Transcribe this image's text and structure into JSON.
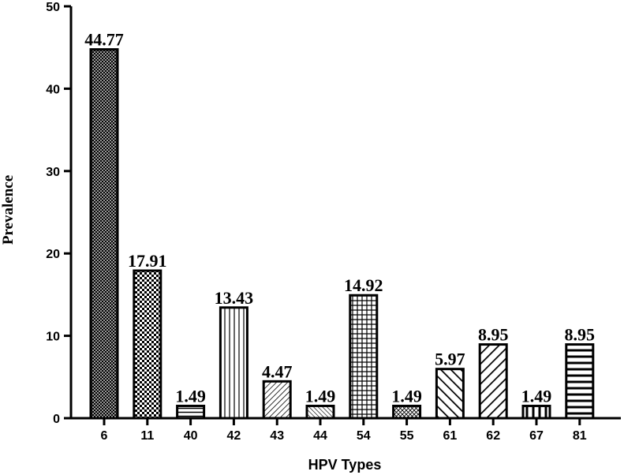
{
  "chart_data": {
    "type": "bar",
    "categories": [
      "6",
      "11",
      "40",
      "42",
      "43",
      "44",
      "54",
      "55",
      "61",
      "62",
      "67",
      "81"
    ],
    "values": [
      44.77,
      17.91,
      1.49,
      13.43,
      4.47,
      1.49,
      14.92,
      1.49,
      5.97,
      8.95,
      1.49,
      8.95
    ],
    "data_labels": [
      "44.77",
      "17.91",
      "1.49",
      "13.43",
      "4.47",
      "1.49",
      "14.92",
      "1.49",
      "5.97",
      "8.95",
      "1.49",
      "8.95"
    ],
    "patterns": [
      "dense-crosshatch",
      "checker",
      "horizontal-lines",
      "vertical-lines",
      "diagonal-lines",
      "diagonal-lines-fine",
      "grid",
      "diagonal-crosshatch",
      "back-diagonal-lines",
      "diagonal-lines-bold",
      "vertical-lines-bold",
      "horizontal-lines-wide"
    ],
    "xlabel": "HPV Types",
    "ylabel": "Prevalence",
    "ylim": [
      0,
      50
    ],
    "yticks": [
      0,
      10,
      20,
      30,
      40,
      50
    ],
    "grid": false,
    "legend": "none",
    "bar_color": "#000000",
    "background": "#ffffff"
  }
}
